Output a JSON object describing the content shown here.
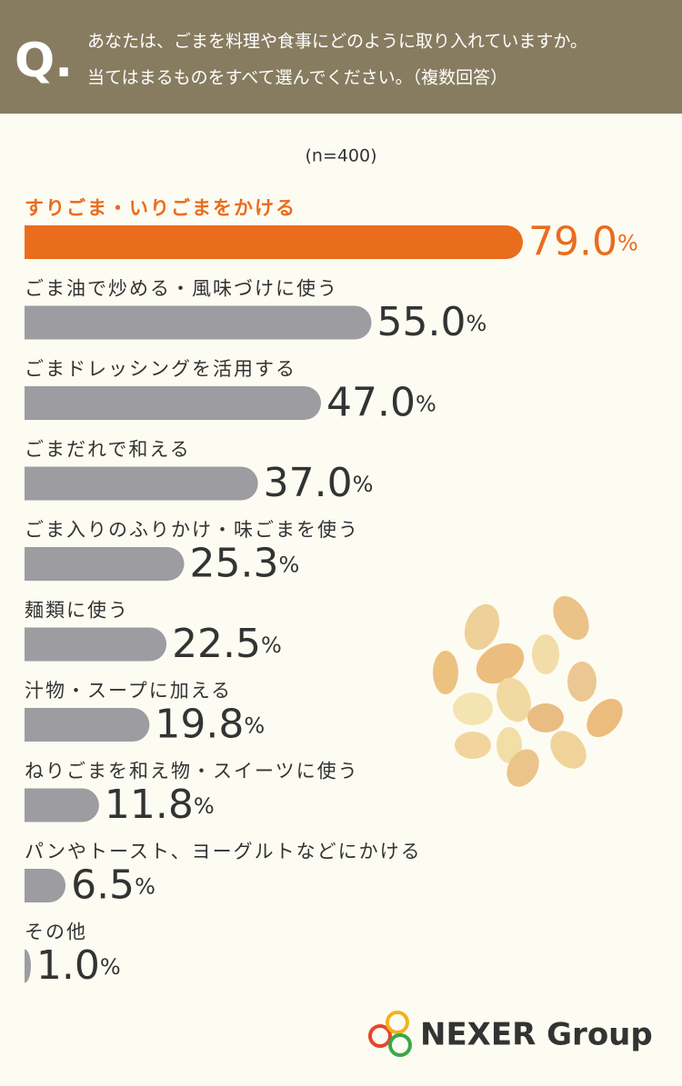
{
  "header": {
    "q": "Q.",
    "question": [
      "あなたは、ごまを料理や食事にどのように取り入れていますか。",
      "当てはまるものをすべて選んでください。（複数回答）"
    ]
  },
  "chart_data": {
    "type": "bar",
    "orientation": "horizontal",
    "subtitle": "(n=400)",
    "categories": [
      "すりごま・いりごまをかける",
      "ごま油で炒める・風味づけに使う",
      "ごまドレッシングを活用する",
      "ごまだれで和える",
      "ごま入りのふりかけ・味ごまを使う",
      "麺類に使う",
      "汁物・スープに加える",
      "ねりごまを和え物・スイーツに使う",
      "パンやトースト、ヨーグルトなどにかける",
      "その他"
    ],
    "values": [
      79.0,
      55.0,
      47.0,
      37.0,
      25.3,
      22.5,
      19.8,
      11.8,
      6.5,
      1.0
    ],
    "value_labels": [
      "79.0%",
      "55.0%",
      "47.0%",
      "37.0%",
      "25.3%",
      "22.5%",
      "19.8%",
      "11.8%",
      "6.5%",
      "1.0%"
    ],
    "color": "#9c9ca1",
    "highlight_color": "#ea6c1d"
  },
  "logo": {
    "text": "NEXER Group"
  }
}
